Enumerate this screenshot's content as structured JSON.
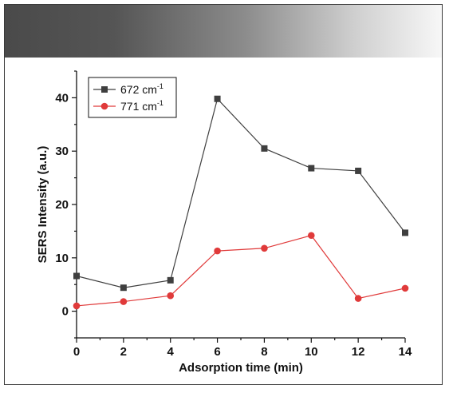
{
  "chart_data": {
    "type": "line",
    "xlabel": "Adsorption time (min)",
    "ylabel": "SERS Intensity (a.u.)",
    "xlim": [
      0,
      14
    ],
    "ylim": [
      -5,
      45
    ],
    "xticks": [
      0,
      2,
      4,
      6,
      8,
      10,
      12,
      14
    ],
    "yticks": [
      0,
      10,
      20,
      30,
      40
    ],
    "x": [
      0,
      2,
      4,
      6,
      8,
      10,
      12,
      14
    ],
    "grid": false,
    "legend_position": "top-left",
    "series": [
      {
        "name": "672 cm",
        "superscript": "-1",
        "marker": "square",
        "color": "#3f3f3f",
        "values": [
          6.6,
          4.4,
          5.8,
          39.8,
          30.5,
          26.8,
          26.3,
          14.7
        ]
      },
      {
        "name": "771 cm",
        "superscript": "-1",
        "marker": "circle",
        "color": "#e03a3a",
        "values": [
          1.0,
          1.8,
          2.9,
          11.3,
          11.8,
          14.2,
          2.4,
          4.3
        ]
      }
    ]
  }
}
